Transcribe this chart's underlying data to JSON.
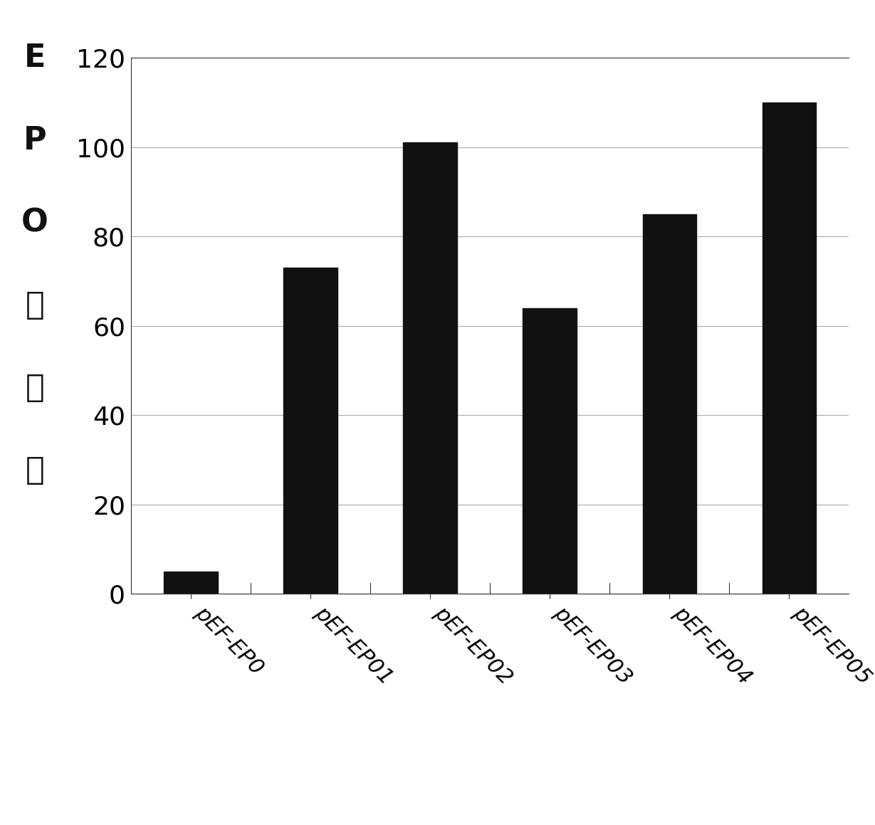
{
  "categories": [
    "pEF-EP0",
    "pEF-EP01",
    "pEF-EP02",
    "pEF-EP03",
    "pEF-EP04",
    "pEF-EP05"
  ],
  "values": [
    5,
    73,
    101,
    64,
    85,
    110
  ],
  "bar_color": "#111111",
  "ylabel_chars": [
    "E",
    "P",
    "O",
    "表",
    "达",
    "量"
  ],
  "ylim": [
    0,
    120
  ],
  "yticks": [
    0,
    20,
    40,
    60,
    80,
    100,
    120
  ],
  "bar_width": 0.45,
  "background_color": "#ffffff",
  "tick_fontsize": 26,
  "ylabel_fontsize": 32,
  "xlabel_fontsize": 22,
  "xlabel_rotation": -45
}
